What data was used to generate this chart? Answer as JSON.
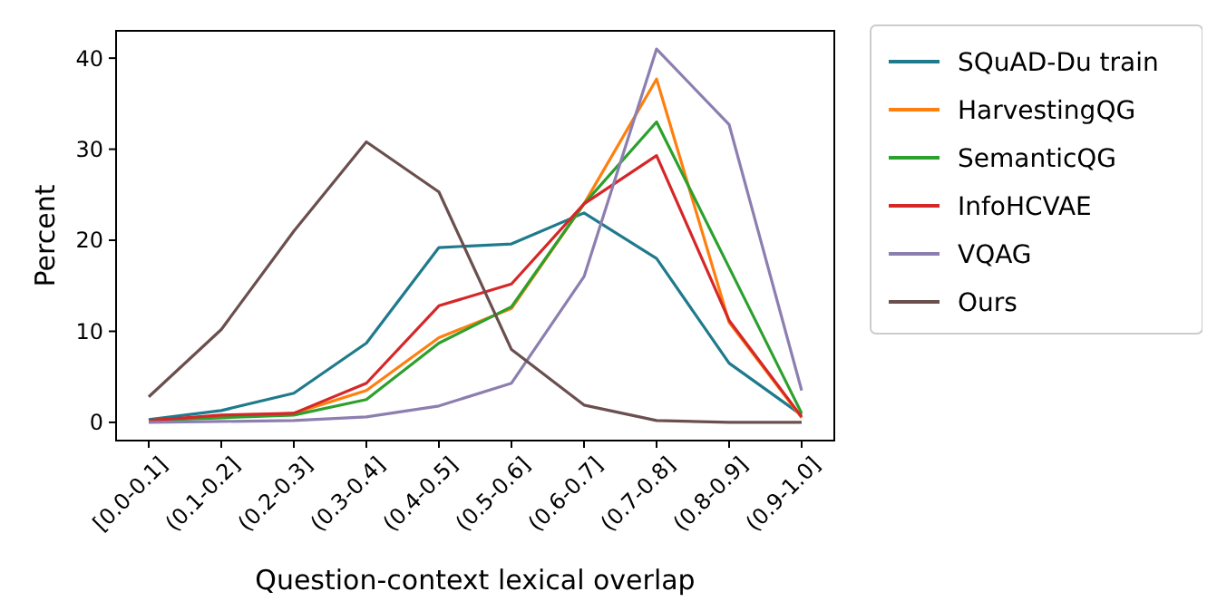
{
  "chart_data": {
    "type": "line",
    "xlabel": "Question-context lexical overlap",
    "ylabel": "Percent",
    "categories": [
      "[0.0-0.1]",
      "(0.1-0.2]",
      "(0.2-0.3]",
      "(0.3-0.4]",
      "(0.4-0.5]",
      "(0.5-0.6]",
      "(0.6-0.7]",
      "(0.7-0.8]",
      "(0.8-0.9]",
      "(0.9-1.0]"
    ],
    "ylim": [
      -2,
      43
    ],
    "yticks": [
      0,
      10,
      20,
      30,
      40
    ],
    "grid": false,
    "legend": "right",
    "marker": "none",
    "line_style": "solid",
    "series": [
      {
        "name": "SQuAD-Du train",
        "color": "#1f7a8c",
        "values": [
          0.3,
          1.3,
          3.2,
          8.7,
          19.2,
          19.6,
          23,
          18,
          6.5,
          0.8
        ]
      },
      {
        "name": "HarvestingQG",
        "color": "#ff7f0e",
        "values": [
          0.2,
          0.6,
          1,
          3.5,
          9.3,
          12.5,
          24,
          37.7,
          11,
          0.5
        ]
      },
      {
        "name": "SemanticQG",
        "color": "#2ca02c",
        "values": [
          0.2,
          0.5,
          0.8,
          2.5,
          8.7,
          12.7,
          24,
          33,
          17,
          1
        ]
      },
      {
        "name": "InfoHCVAE",
        "color": "#d62728",
        "values": [
          0.2,
          0.8,
          1,
          4.3,
          12.8,
          15.2,
          24,
          29.3,
          11.2,
          0.6
        ]
      },
      {
        "name": "VQAG",
        "color": "#8c7fb0",
        "values": [
          0,
          0.1,
          0.2,
          0.6,
          1.8,
          4.3,
          16,
          41,
          32.7,
          3.5
        ]
      },
      {
        "name": "Ours",
        "color": "#6b4f4f",
        "values": [
          2.8,
          10.2,
          21,
          30.8,
          25.3,
          8,
          1.9,
          0.2,
          0,
          0
        ]
      }
    ]
  }
}
